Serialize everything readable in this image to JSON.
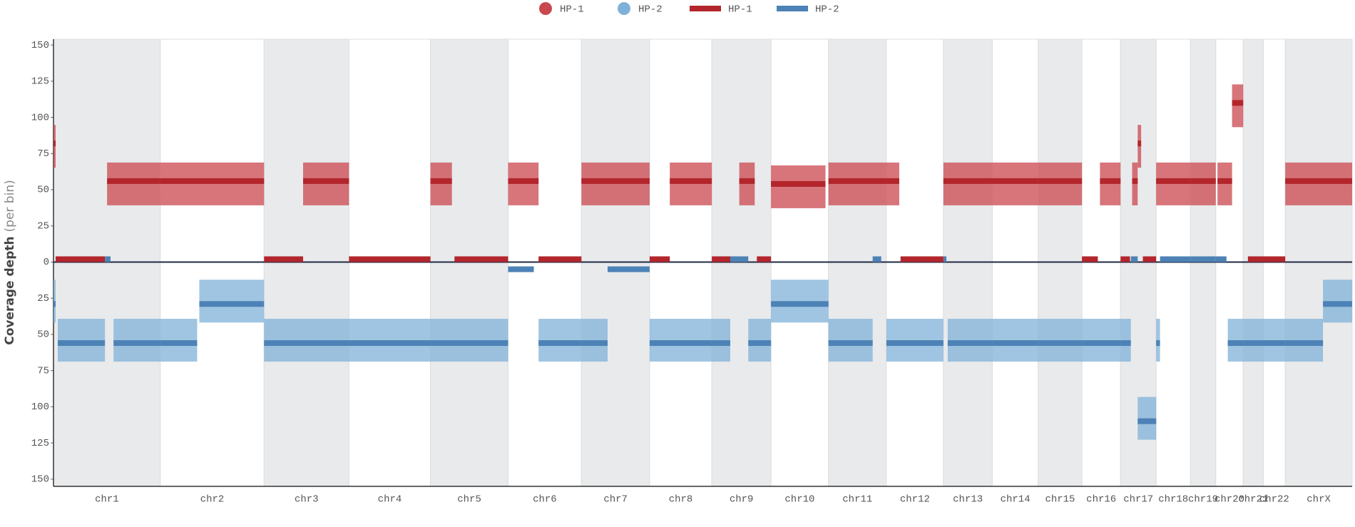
{
  "chart_data": {
    "type": "segments",
    "y_label": "Coverage depth",
    "y_label_unit": "(per bin)",
    "xlim": [
      0,
      3028
    ],
    "ylim": [
      -155,
      154
    ],
    "yticks": [
      {
        "value": -150,
        "label": "150"
      },
      {
        "value": -125,
        "label": "125"
      },
      {
        "value": -100,
        "label": "100"
      },
      {
        "value": -75,
        "label": "75"
      },
      {
        "value": -50,
        "label": "50"
      },
      {
        "value": -25,
        "label": "25"
      },
      0,
      25,
      50,
      75,
      100,
      125,
      150
    ],
    "zero_line": true,
    "legend": [
      {
        "name": "HP-1",
        "style": "marker",
        "color": "#c9474f"
      },
      {
        "name": "HP-2",
        "style": "marker",
        "color": "#7fb1d8"
      },
      {
        "name": "HP-1",
        "style": "line",
        "color": "#b3262c"
      },
      {
        "name": "HP-2",
        "style": "line",
        "color": "#4d82b6"
      }
    ],
    "chromosomes": [
      {
        "name": "chr1",
        "start": 0,
        "end": 249
      },
      {
        "name": "chr2",
        "start": 249,
        "end": 491
      },
      {
        "name": "chr3",
        "start": 491,
        "end": 689
      },
      {
        "name": "chr4",
        "start": 689,
        "end": 879
      },
      {
        "name": "chr5",
        "start": 879,
        "end": 1060
      },
      {
        "name": "chr6",
        "start": 1060,
        "end": 1231
      },
      {
        "name": "chr7",
        "start": 1231,
        "end": 1390
      },
      {
        "name": "chr8",
        "start": 1390,
        "end": 1535
      },
      {
        "name": "chr9",
        "start": 1535,
        "end": 1673
      },
      {
        "name": "chr10",
        "start": 1673,
        "end": 1807
      },
      {
        "name": "chr11",
        "start": 1807,
        "end": 1942
      },
      {
        "name": "chr12",
        "start": 1942,
        "end": 2075
      },
      {
        "name": "chr13",
        "start": 2075,
        "end": 2189
      },
      {
        "name": "chr14",
        "start": 2189,
        "end": 2296
      },
      {
        "name": "chr15",
        "start": 2296,
        "end": 2398
      },
      {
        "name": "chr16",
        "start": 2398,
        "end": 2488
      },
      {
        "name": "chr17",
        "start": 2488,
        "end": 2571
      },
      {
        "name": "chr18",
        "start": 2571,
        "end": 2651
      },
      {
        "name": "chr19",
        "start": 2651,
        "end": 2710
      },
      {
        "name": "chr20",
        "start": 2710,
        "end": 2774
      },
      {
        "name": "chr21",
        "start": 2774,
        "end": 2821
      },
      {
        "name": "chr22",
        "start": 2821,
        "end": 2872
      },
      {
        "name": "chrX",
        "start": 2872,
        "end": 3028
      }
    ],
    "series": [
      {
        "name": "HP-1",
        "color": "#b3262c",
        "cloud_color": "#c9474f",
        "segments": [
          {
            "start": 0,
            "end": 5,
            "value": 80
          },
          {
            "start": 5,
            "end": 120,
            "value": 0
          },
          {
            "start": 125,
            "end": 249,
            "value": 54
          },
          {
            "start": 249,
            "end": 491,
            "value": 54
          },
          {
            "start": 491,
            "end": 582,
            "value": 0
          },
          {
            "start": 582,
            "end": 689,
            "value": 54
          },
          {
            "start": 689,
            "end": 879,
            "value": 0
          },
          {
            "start": 879,
            "end": 929,
            "value": 54
          },
          {
            "start": 935,
            "end": 1060,
            "value": 0
          },
          {
            "start": 1060,
            "end": 1131,
            "value": 54
          },
          {
            "start": 1131,
            "end": 1231,
            "value": 0
          },
          {
            "start": 1231,
            "end": 1390,
            "value": 54
          },
          {
            "start": 1390,
            "end": 1437,
            "value": 0
          },
          {
            "start": 1437,
            "end": 1535,
            "value": 54
          },
          {
            "start": 1535,
            "end": 1578,
            "value": 0
          },
          {
            "start": 1599,
            "end": 1635,
            "value": 54
          },
          {
            "start": 1640,
            "end": 1673,
            "value": 0
          },
          {
            "start": 1673,
            "end": 1800,
            "value": 52
          },
          {
            "start": 1807,
            "end": 1942,
            "value": 54
          },
          {
            "start": 1942,
            "end": 1972,
            "value": 54
          },
          {
            "start": 1975,
            "end": 2075,
            "value": 0
          },
          {
            "start": 2075,
            "end": 2189,
            "value": 54
          },
          {
            "start": 2189,
            "end": 2296,
            "value": 54
          },
          {
            "start": 2296,
            "end": 2398,
            "value": 54
          },
          {
            "start": 2398,
            "end": 2435,
            "value": 0
          },
          {
            "start": 2440,
            "end": 2488,
            "value": 54
          },
          {
            "start": 2488,
            "end": 2510,
            "value": 0
          },
          {
            "start": 2515,
            "end": 2528,
            "value": 54
          },
          {
            "start": 2528,
            "end": 2536,
            "value": 80
          },
          {
            "start": 2540,
            "end": 2571,
            "value": 0
          },
          {
            "start": 2571,
            "end": 2651,
            "value": 54
          },
          {
            "start": 2651,
            "end": 2710,
            "value": 54
          },
          {
            "start": 2714,
            "end": 2748,
            "value": 54
          },
          {
            "start": 2748,
            "end": 2774,
            "value": 108
          },
          {
            "start": 2785,
            "end": 2821,
            "value": 0
          },
          {
            "start": 2821,
            "end": 2872,
            "value": 0
          },
          {
            "start": 2872,
            "end": 3028,
            "value": 54
          }
        ]
      },
      {
        "name": "HP-2",
        "color": "#4d82b6",
        "cloud_color": "#7fb1d8",
        "segments": [
          {
            "start": 0,
            "end": 5,
            "value": -27
          },
          {
            "start": 10,
            "end": 120,
            "value": -54
          },
          {
            "start": 120,
            "end": 133,
            "value": 0
          },
          {
            "start": 140,
            "end": 249,
            "value": -54
          },
          {
            "start": 249,
            "end": 335,
            "value": -54
          },
          {
            "start": 340,
            "end": 491,
            "value": -27
          },
          {
            "start": 491,
            "end": 689,
            "value": -54
          },
          {
            "start": 689,
            "end": 879,
            "value": -54
          },
          {
            "start": 879,
            "end": 1060,
            "value": -54
          },
          {
            "start": 1060,
            "end": 1120,
            "value": -3
          },
          {
            "start": 1131,
            "end": 1231,
            "value": -54
          },
          {
            "start": 1231,
            "end": 1292,
            "value": -54
          },
          {
            "start": 1292,
            "end": 1390,
            "value": -3
          },
          {
            "start": 1390,
            "end": 1535,
            "value": -54
          },
          {
            "start": 1535,
            "end": 1578,
            "value": -54
          },
          {
            "start": 1578,
            "end": 1620,
            "value": 0
          },
          {
            "start": 1620,
            "end": 1673,
            "value": -54
          },
          {
            "start": 1673,
            "end": 1807,
            "value": -27
          },
          {
            "start": 1807,
            "end": 1910,
            "value": -54
          },
          {
            "start": 1910,
            "end": 1930,
            "value": 0
          },
          {
            "start": 1942,
            "end": 2075,
            "value": -54
          },
          {
            "start": 2075,
            "end": 2082,
            "value": 0
          },
          {
            "start": 2085,
            "end": 2189,
            "value": -54
          },
          {
            "start": 2189,
            "end": 2296,
            "value": -54
          },
          {
            "start": 2296,
            "end": 2398,
            "value": -54
          },
          {
            "start": 2398,
            "end": 2488,
            "value": -54
          },
          {
            "start": 2488,
            "end": 2512,
            "value": -54
          },
          {
            "start": 2512,
            "end": 2528,
            "value": 0
          },
          {
            "start": 2528,
            "end": 2571,
            "value": -108
          },
          {
            "start": 2571,
            "end": 2580,
            "value": -54
          },
          {
            "start": 2580,
            "end": 2651,
            "value": 0
          },
          {
            "start": 2651,
            "end": 2710,
            "value": 0
          },
          {
            "start": 2710,
            "end": 2735,
            "value": 0
          },
          {
            "start": 2738,
            "end": 2774,
            "value": -54
          },
          {
            "start": 2774,
            "end": 2821,
            "value": -54
          },
          {
            "start": 2821,
            "end": 2872,
            "value": -54
          },
          {
            "start": 2872,
            "end": 2960,
            "value": -54
          },
          {
            "start": 2960,
            "end": 3028,
            "value": -27
          }
        ]
      }
    ]
  }
}
